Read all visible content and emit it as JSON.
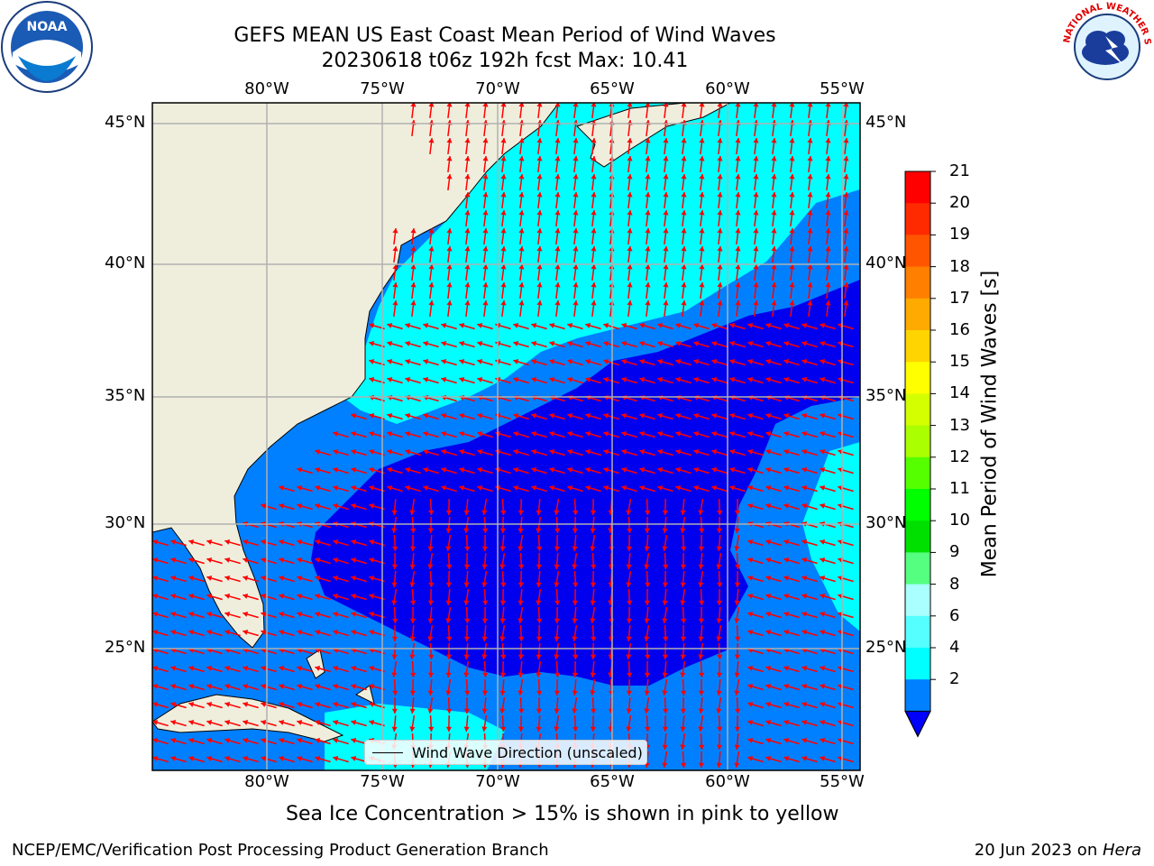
{
  "title": {
    "line1": "GEFS MEAN US East Coast Mean Period of Wind Waves",
    "line2": "20230618 t06z 192h fcst   Max: 10.41"
  },
  "logos": {
    "left": "noaa-logo",
    "left_text": "NOAA",
    "right": "nws-logo",
    "right_text": "NATIONAL WEATHER SERVICE"
  },
  "axes": {
    "lon_labels": [
      "80°W",
      "75°W",
      "70°W",
      "65°W",
      "60°W",
      "55°W"
    ],
    "lat_labels": [
      "45°N",
      "40°N",
      "35°N",
      "30°N",
      "25°N"
    ]
  },
  "colorbar": {
    "label": "Mean Period of Wind Waves [s]",
    "ticks": [
      "21",
      "20",
      "19",
      "18",
      "17",
      "16",
      "15",
      "14",
      "13",
      "12",
      "11",
      "10",
      "9",
      "8",
      "6",
      "4",
      "2"
    ],
    "colors": [
      "#ff0000",
      "#ff2a00",
      "#ff5500",
      "#ff7f00",
      "#ffaa00",
      "#ffd400",
      "#ffff00",
      "#d4ff00",
      "#aaff00",
      "#55ff00",
      "#00ff00",
      "#00e000",
      "#55ff7f",
      "#aaffff",
      "#55ffff",
      "#00ffff",
      "#0080ff"
    ],
    "extend_color": "#0000ff"
  },
  "legend": {
    "label": "Wind Wave Direction (unscaled)"
  },
  "ice_note": "Sea Ice Concentration > 15% is shown in pink to yellow",
  "footer": {
    "left": "NCEP/EMC/Verification Post Processing Product Generation Branch",
    "right_date": "20 Jun 2023 on ",
    "right_host": "Hera"
  },
  "colors": {
    "land": "#efeedd",
    "grid": "#b0b0b0",
    "arrow": "#ff0000"
  }
}
